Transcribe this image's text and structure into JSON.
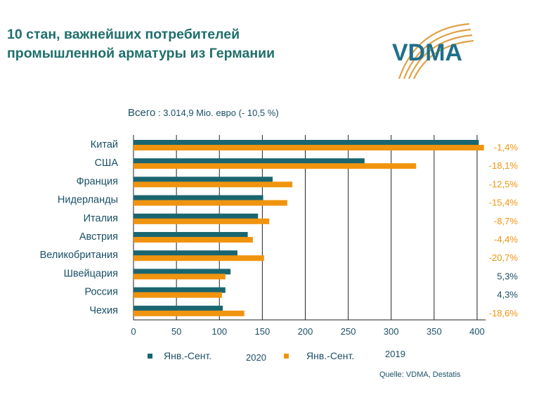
{
  "title_line1": "10 стан, важнейших потребителей",
  "title_line2": "промышленной арматуры из Германии",
  "logo_text": "VDMA",
  "total": {
    "label": "Всего",
    "value": ": 3.014,9 Mio. евро",
    "change": "(- 10,5 %)"
  },
  "source": "Quelle: VDMA, Destatis",
  "colors": {
    "series2020": "#1a6670",
    "series2019": "#f0940f",
    "title": "#1f6f6b",
    "pos": "#1a4f66",
    "neg": "#f0940f"
  },
  "chart_data": {
    "type": "bar",
    "orientation": "horizontal",
    "categories": [
      "Китай",
      "США",
      "Франция",
      "Нидерланды",
      "Италия",
      "Австрия",
      "Великобритания",
      "Швейцария",
      "Россия",
      "Чехия"
    ],
    "series": [
      {
        "name": "Янв.-Сент. 2020",
        "values": [
          402,
          269,
          162,
          151,
          145,
          133,
          121,
          113,
          107,
          104
        ]
      },
      {
        "name": "Янв.-Сент. 2019",
        "values": [
          408,
          329,
          185,
          179,
          158,
          139,
          152,
          107,
          103,
          129
        ]
      }
    ],
    "changes": [
      "-1,4%",
      "-18,1%",
      "-12,5%",
      "-15,4%",
      "-8,7%",
      "-4,4%",
      "-20,7%",
      "5,3%",
      "4,3%",
      "-18,6%"
    ],
    "xlim": [
      0,
      410
    ],
    "xticks": [
      0,
      50,
      100,
      150,
      200,
      250,
      300,
      350,
      400
    ],
    "legend": [
      {
        "label": "Янв.-Сент.",
        "year": "2020"
      },
      {
        "label": "Янв.-Сент.",
        "year": "2019"
      }
    ],
    "legend_position": "bottom",
    "grid": true
  }
}
